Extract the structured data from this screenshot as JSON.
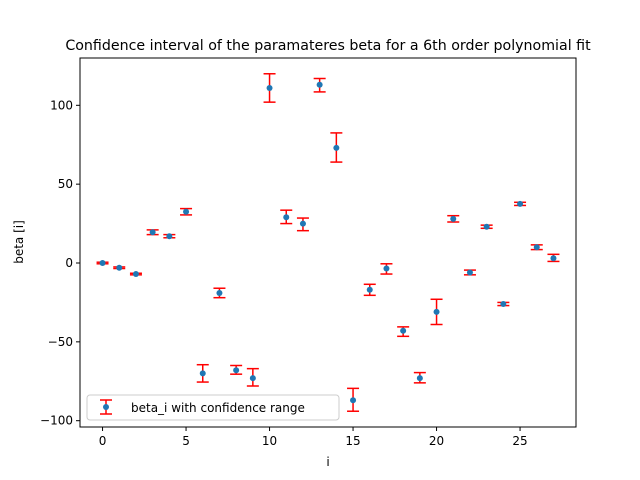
{
  "chart_data": {
    "type": "scatter",
    "title": "Confidence interval of the paramateres beta for a 6th order polynomial fit",
    "xlabel": "i",
    "ylabel": "beta [i]",
    "xlim": [
      -1.35,
      28.35
    ],
    "ylim": [
      -104.0,
      130.0
    ],
    "xticks": [
      0,
      5,
      10,
      15,
      20,
      25
    ],
    "yticks": [
      -100,
      -50,
      0,
      50,
      100
    ],
    "xtick_labels": [
      "0",
      "5",
      "10",
      "15",
      "20",
      "25"
    ],
    "ytick_labels": [
      "−100",
      "−50",
      "0",
      "50",
      "100"
    ],
    "grid": false,
    "legend_position": "lower-left",
    "series": [
      {
        "name": "beta_i with confidence range",
        "marker_color": "#1f77b4",
        "errorbar_color": "#ff0000",
        "points": [
          {
            "x": 0,
            "y": 0,
            "low": -0.5,
            "high": 0.5
          },
          {
            "x": 1,
            "y": -3,
            "low": -3.5,
            "high": -2.5
          },
          {
            "x": 2,
            "y": -7,
            "low": -7.5,
            "high": -6.5
          },
          {
            "x": 3,
            "y": 19.5,
            "low": 18,
            "high": 21
          },
          {
            "x": 4,
            "y": 17,
            "low": 16,
            "high": 18
          },
          {
            "x": 5,
            "y": 32.5,
            "low": 30.5,
            "high": 34.5
          },
          {
            "x": 6,
            "y": -70,
            "low": -75.5,
            "high": -64.5
          },
          {
            "x": 7,
            "y": -19,
            "low": -22,
            "high": -16
          },
          {
            "x": 8,
            "y": -68,
            "low": -70.5,
            "high": -65
          },
          {
            "x": 9,
            "y": -73,
            "low": -78,
            "high": -67
          },
          {
            "x": 10,
            "y": 111,
            "low": 102,
            "high": 120
          },
          {
            "x": 11,
            "y": 29,
            "low": 25,
            "high": 33.5
          },
          {
            "x": 12,
            "y": 25,
            "low": 20.5,
            "high": 28.5
          },
          {
            "x": 13,
            "y": 113,
            "low": 108.5,
            "high": 117
          },
          {
            "x": 14,
            "y": 73,
            "low": 64,
            "high": 82.5
          },
          {
            "x": 15,
            "y": -87,
            "low": -94,
            "high": -79.5
          },
          {
            "x": 16,
            "y": -17,
            "low": -20.5,
            "high": -13.5
          },
          {
            "x": 17,
            "y": -3.5,
            "low": -7,
            "high": -0.5
          },
          {
            "x": 18,
            "y": -43,
            "low": -46.5,
            "high": -40.5
          },
          {
            "x": 19,
            "y": -73,
            "low": -76,
            "high": -69.5
          },
          {
            "x": 20,
            "y": -31,
            "low": -39,
            "high": -23
          },
          {
            "x": 21,
            "y": 28,
            "low": 26,
            "high": 30
          },
          {
            "x": 22,
            "y": -6,
            "low": -7.5,
            "high": -4.5
          },
          {
            "x": 23,
            "y": 23,
            "low": 22,
            "high": 24
          },
          {
            "x": 24,
            "y": -26,
            "low": -27,
            "high": -25
          },
          {
            "x": 25,
            "y": 37.5,
            "low": 36.5,
            "high": 38.5
          },
          {
            "x": 26,
            "y": 10,
            "low": 8.5,
            "high": 11.5
          },
          {
            "x": 27,
            "y": 3,
            "low": 1,
            "high": 5.5
          }
        ]
      }
    ]
  }
}
